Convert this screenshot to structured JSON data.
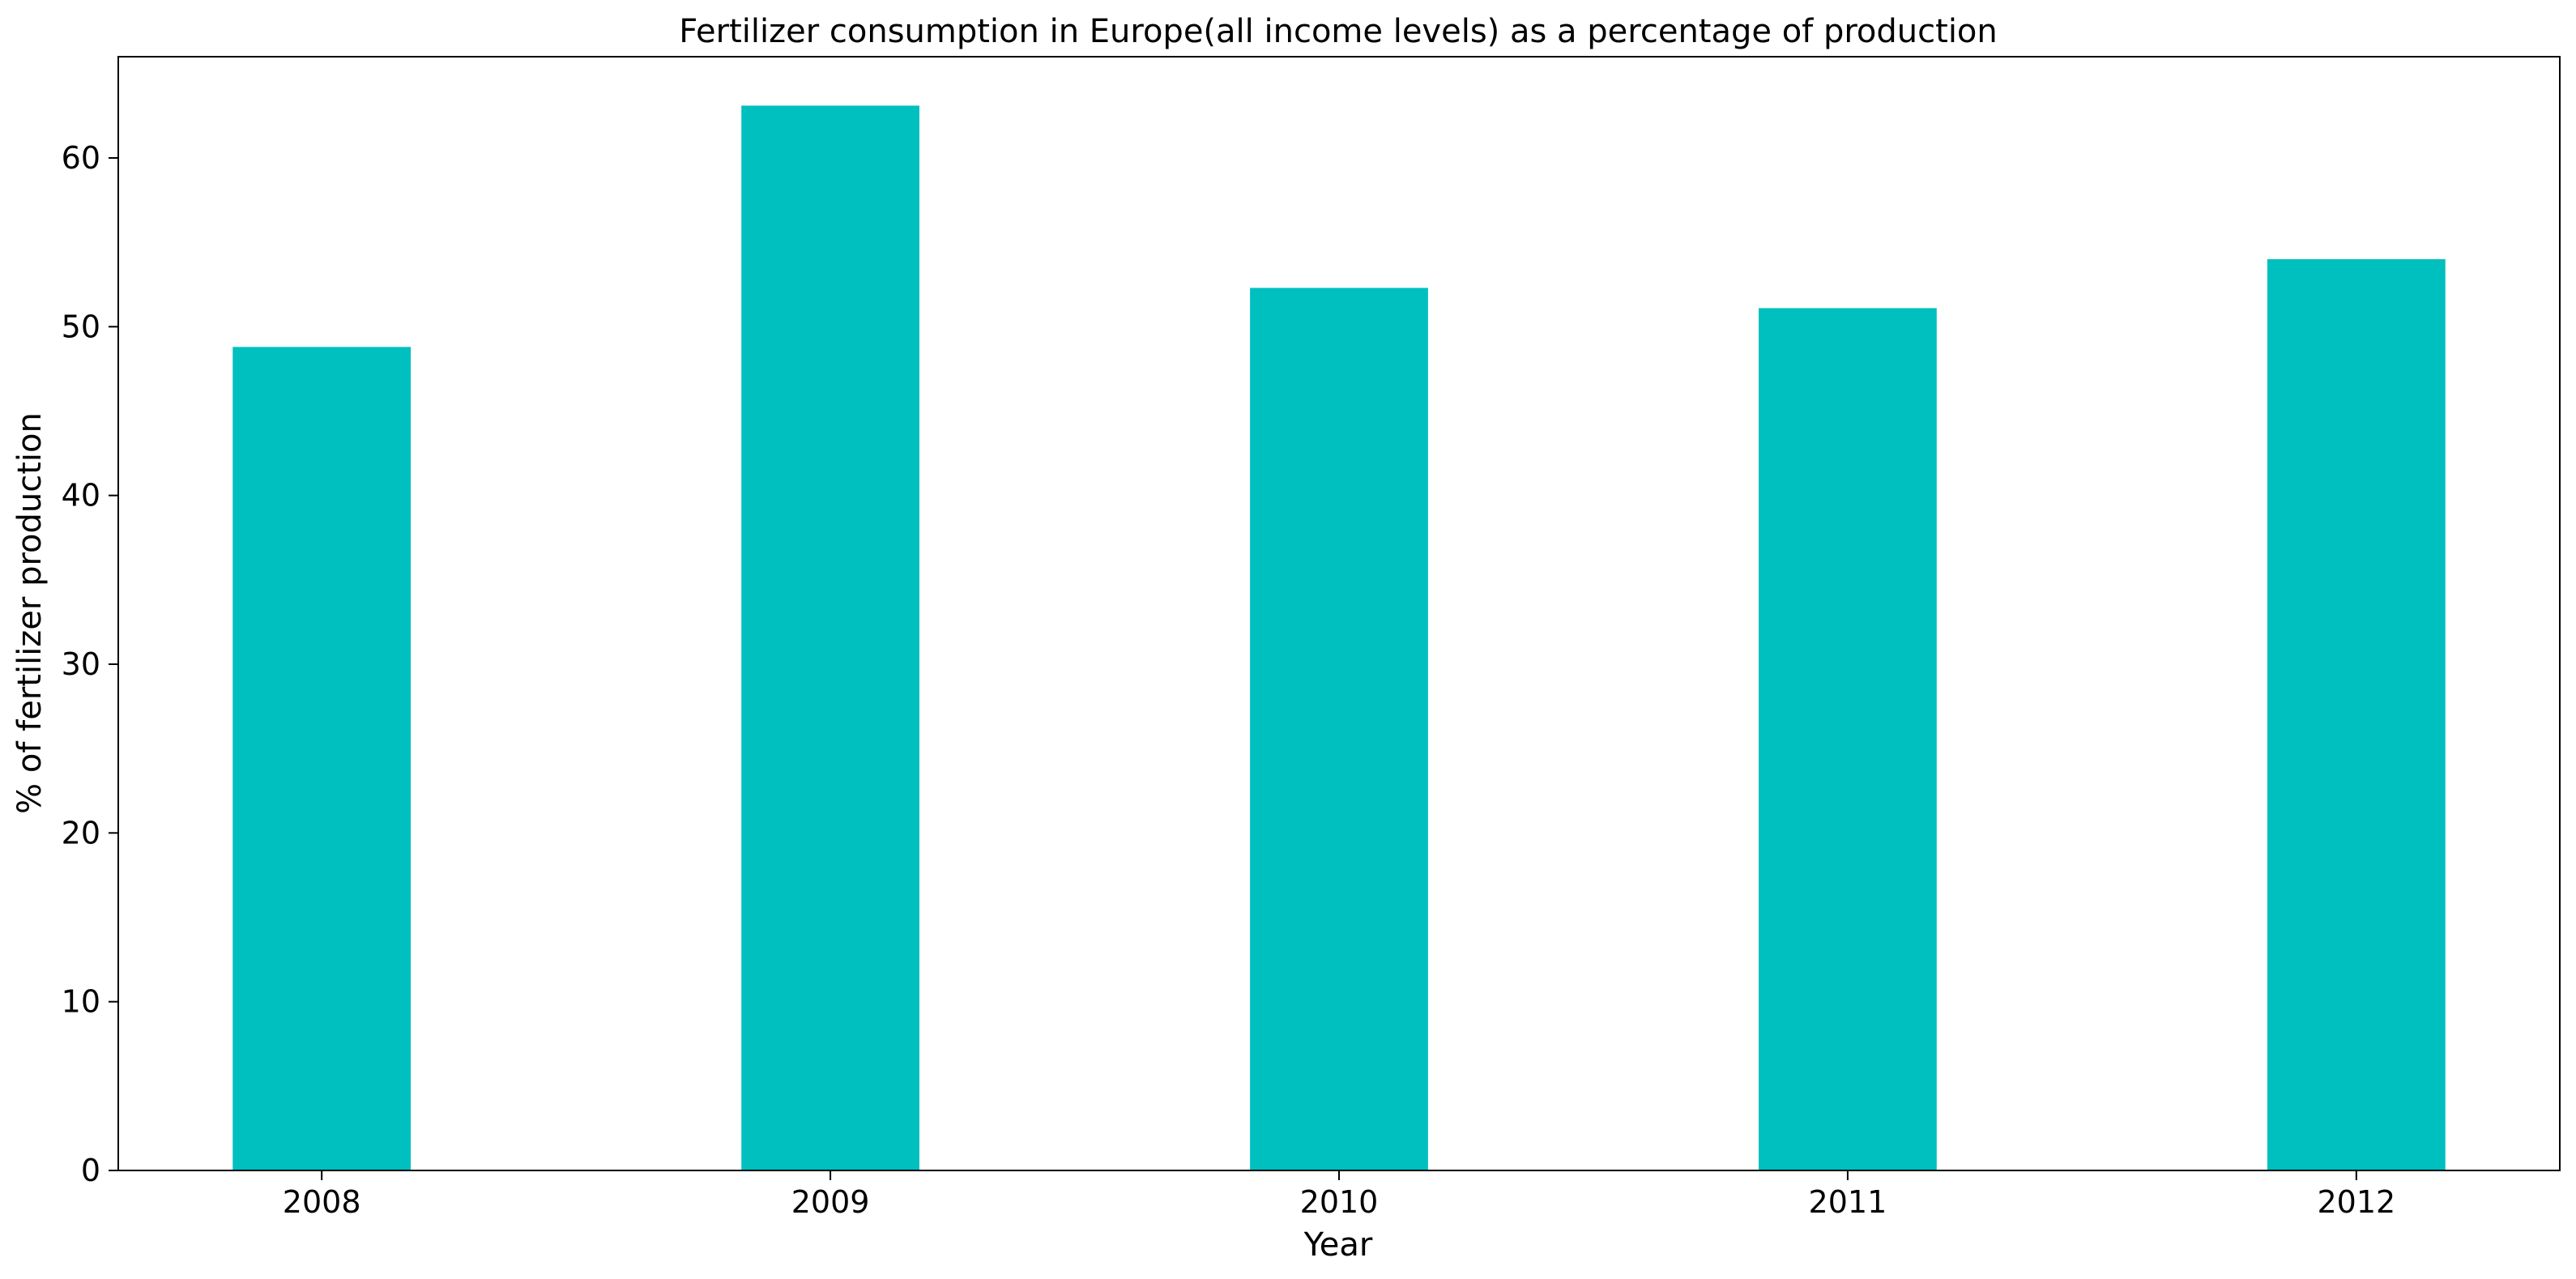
{
  "chart_data": {
    "type": "bar",
    "title": "Fertilizer consumption in Europe(all income levels) as a percentage of production",
    "xlabel": "Year",
    "ylabel": "% of fertilizer production",
    "categories": [
      "2008",
      "2009",
      "2010",
      "2011",
      "2012"
    ],
    "values": [
      48.8,
      63.1,
      52.3,
      51.1,
      54.0
    ],
    "ylim": [
      0,
      66
    ],
    "yticks": [
      0,
      10,
      20,
      30,
      40,
      50,
      60
    ],
    "grid": false,
    "legend": "none",
    "bar_color": "#00bfbf"
  }
}
